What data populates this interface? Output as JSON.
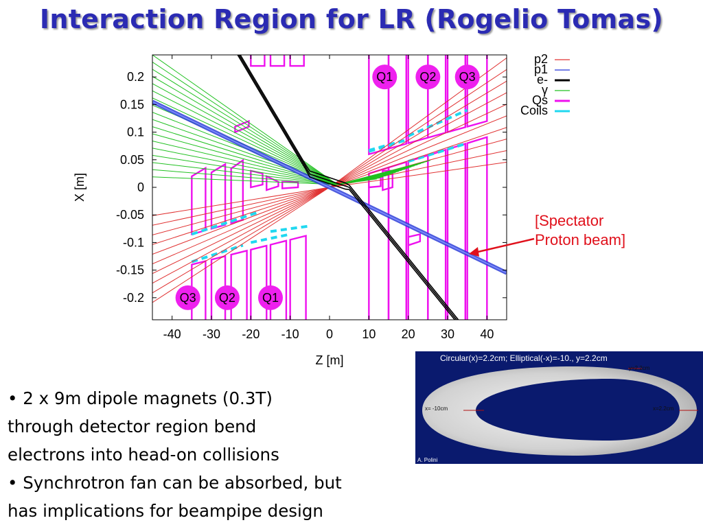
{
  "slide": {
    "title": "Interaction Region for LR (Rogelio Tomas)"
  },
  "plot": {
    "x_label": "Z [m]",
    "y_label": "X [m]",
    "x_ticks": [
      "-40",
      "-30",
      "-20",
      "-10",
      "0",
      "10",
      "20",
      "30",
      "40"
    ],
    "y_ticks": [
      "0.2",
      "0.15",
      "0.1",
      "0.05",
      "0",
      "-0.05",
      "-0.1",
      "-0.15",
      "-0.2"
    ],
    "x_range_m": [
      -45,
      45
    ],
    "y_range_m": [
      -0.24,
      0.24
    ],
    "quad_labels": {
      "top": [
        "Q1",
        "Q2",
        "Q3"
      ],
      "bottom": [
        "Q3",
        "Q2",
        "Q1"
      ]
    },
    "legend": [
      {
        "label": "p2",
        "color": "#e03030"
      },
      {
        "label": "p1",
        "color": "#2030d8"
      },
      {
        "label": "e-",
        "color": "#000000"
      },
      {
        "label": "γ",
        "color": "#20c020"
      },
      {
        "label": "Qs",
        "color": "#ee10ee"
      },
      {
        "label": "Coils",
        "color": "#20d8f0"
      }
    ],
    "colors": {
      "proton": "#e03030",
      "spectator": "#2e3fd8",
      "electron": "#000000",
      "photon": "#20c020",
      "quad": "#ee10ee",
      "coil": "#20d8f0",
      "quad_label_fill": "#ee20ee"
    }
  },
  "annotation": {
    "line1": "[Spectator",
    "line2": "Proton beam]",
    "color": "#e0101b"
  },
  "beampipe": {
    "header": "Circular(x)=2.2cm;   Elliptical(-x)=-10., y=2.2cm",
    "y_label": "y=2.2cm",
    "x_neg_label": "x= -10cm",
    "x_pos_label": "x=2.2cm",
    "credit": "A. Polini",
    "background": "#0a1a6e"
  },
  "bullets": [
    {
      "lines": [
        "• 2 x 9m dipole magnets (0.3T)",
        "through detector region bend",
        "electrons into head-on collisions"
      ]
    },
    {
      "lines": [
        "• Synchrotron fan can be absorbed, but",
        "has implications for beampipe design"
      ]
    }
  ]
}
